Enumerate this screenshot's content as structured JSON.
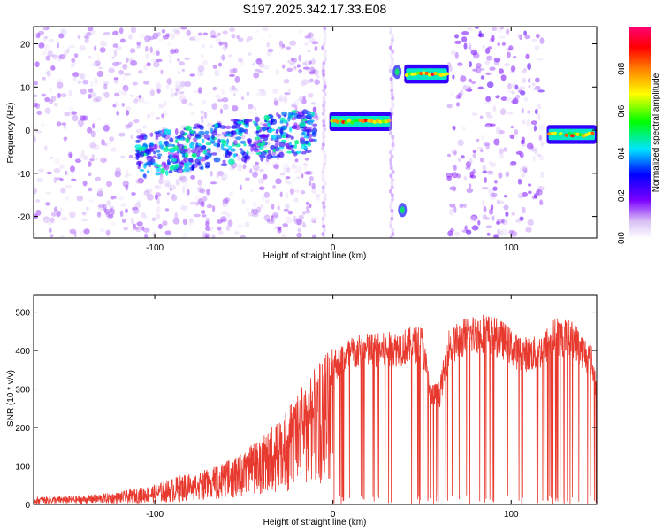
{
  "title": "S197.2025.342.17.33.E08",
  "chart_data": [
    {
      "type": "heatmap",
      "name": "spectrogram",
      "xlabel": "Height of straight line (km)",
      "ylabel": "Frequency (Hz)",
      "xlim": [
        -168,
        148
      ],
      "ylim": [
        -25,
        24
      ],
      "xticks": [
        -100,
        0,
        100
      ],
      "yticks": [
        -20,
        -10,
        0,
        10,
        20
      ],
      "colorbar": {
        "label": "Normalized spectral amplitude",
        "range": [
          0,
          1
        ],
        "ticks": [
          0.0,
          0.2,
          0.4,
          0.6,
          0.8
        ],
        "colors": [
          "#ffffff",
          "#d9bff5",
          "#7a00ff",
          "#0000ff",
          "#00e5ff",
          "#00ff00",
          "#ffff00",
          "#ff8000",
          "#ff0000",
          "#ff0077"
        ]
      },
      "features": [
        {
          "label": "scattered noise",
          "x_range": [
            -168,
            -8
          ],
          "freq": [
            -25,
            24
          ],
          "amplitude": 0.15
        },
        {
          "label": "rising trend",
          "x_range": [
            -110,
            -10
          ],
          "freq_start": -6,
          "freq_end": 0,
          "amplitude": 0.35
        },
        {
          "label": "vertical streak",
          "x": -5,
          "freq": [
            -25,
            24
          ],
          "amplitude": 0.1
        },
        {
          "label": "band A",
          "x_range": [
            -2,
            33
          ],
          "freq": 2,
          "amplitude": 0.9
        },
        {
          "label": "vertical streak",
          "x": 33,
          "freq": [
            -25,
            24
          ],
          "amplitude": 0.1
        },
        {
          "label": "spot",
          "x": 36,
          "freq": 13.5,
          "amplitude": 0.5
        },
        {
          "label": "spot",
          "x": 39,
          "freq": -18.5,
          "amplitude": 0.5
        },
        {
          "label": "band B",
          "x_range": [
            40,
            65
          ],
          "freq": 13,
          "amplitude": 0.95
        },
        {
          "label": "scattered noise",
          "x_range": [
            65,
            118
          ],
          "freq": [
            -25,
            24
          ],
          "amplitude": 0.2
        },
        {
          "label": "band C",
          "x_range": [
            120,
            148
          ],
          "freq": -1,
          "amplitude": 0.85
        }
      ]
    },
    {
      "type": "line",
      "name": "snr",
      "xlabel": "Height of straight line (km)",
      "ylabel": "SNR (10 * v/v)",
      "xlim": [
        -168,
        148
      ],
      "ylim": [
        0,
        545
      ],
      "xticks": [
        -100,
        0,
        100
      ],
      "yticks": [
        0,
        100,
        200,
        300,
        400,
        500
      ],
      "color": "#e8392e",
      "envelope": {
        "x": [
          -168,
          -140,
          -120,
          -100,
          -85,
          -70,
          -55,
          -40,
          -25,
          -10,
          0,
          10,
          20,
          30,
          40,
          50,
          55,
          60,
          65,
          75,
          85,
          95,
          105,
          115,
          125,
          135,
          145,
          148
        ],
        "y": [
          15,
          18,
          25,
          40,
          60,
          85,
          110,
          160,
          230,
          330,
          390,
          420,
          430,
          430,
          440,
          450,
          300,
          310,
          440,
          470,
          480,
          460,
          420,
          420,
          470,
          460,
          400,
          320
        ]
      }
    }
  ]
}
